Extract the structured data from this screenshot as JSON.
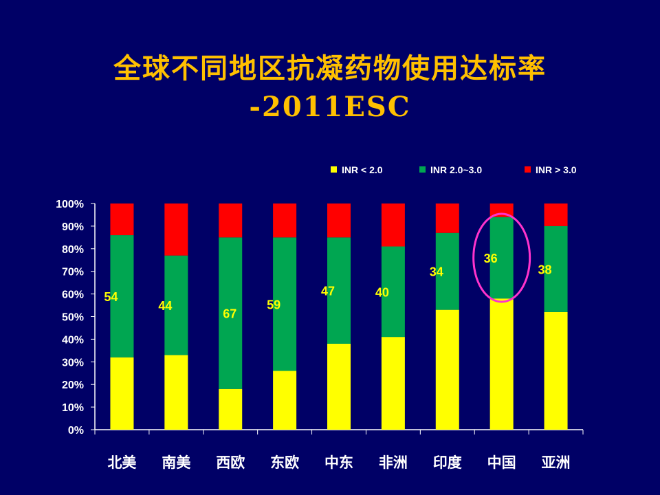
{
  "title": {
    "line1": "全球不同地区抗凝药物使用达标率",
    "line2": "-2011ESC"
  },
  "chart_data": {
    "type": "bar",
    "stacked": true,
    "categories": [
      "北美",
      "南美",
      "西欧",
      "东欧",
      "中东",
      "非洲",
      "印度",
      "中国",
      "亚洲"
    ],
    "series": [
      {
        "name": "INR < 2.0",
        "color": "#FFFF00",
        "values": [
          32,
          33,
          18,
          26,
          38,
          41,
          53,
          58,
          52
        ]
      },
      {
        "name": "INR 2.0~3.0",
        "color": "#00A651",
        "values": [
          54,
          44,
          67,
          59,
          47,
          40,
          34,
          36,
          38
        ]
      },
      {
        "name": "INR > 3.0",
        "color": "#FF0000",
        "values": [
          14,
          23,
          15,
          15,
          15,
          19,
          13,
          6,
          10
        ]
      }
    ],
    "data_labels": [
      "54",
      "44",
      "67",
      "59",
      "47",
      "40",
      "34",
      "36",
      "38"
    ],
    "y_ticks": [
      "0%",
      "10%",
      "20%",
      "30%",
      "40%",
      "50%",
      "60%",
      "70%",
      "80%",
      "90%",
      "100%"
    ],
    "ylim": [
      0,
      100
    ],
    "legend": "top-right",
    "grid": false,
    "highlight": {
      "category": "中国",
      "color": "#FF33CC",
      "shape": "ellipse"
    }
  }
}
